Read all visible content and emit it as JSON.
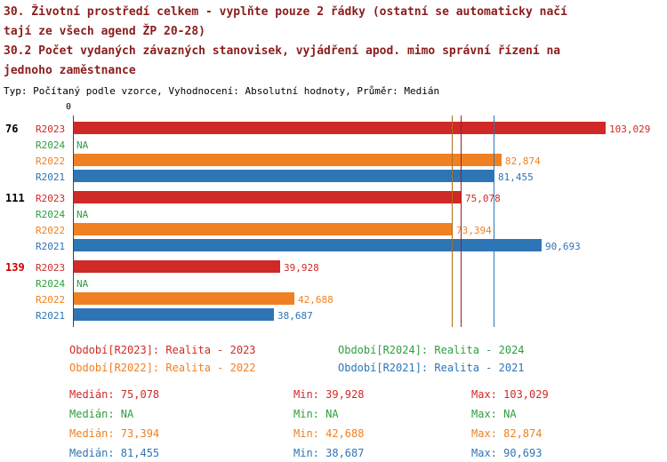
{
  "header": {
    "title_lines": [
      "30. Životní prostředí celkem - vyplňte pouze 2 řádky (ostatní se automaticky načí",
      "tají ze všech agend ŽP 20-28)",
      "30.2 Počet vydaných závazných stanovisek, vyjádření apod. mimo správní řízení na",
      "jednoho zaměstnance"
    ],
    "meta_line": "Typ: Počítaný podle vzorce, Vyhodnocení: Absolutní hodnoty, Průměr: Medián"
  },
  "colors": {
    "title": "#8b1c1c",
    "R2023": "#cf2a27",
    "R2024": "#2e9e3e",
    "R2022": "#ef8122",
    "R2021": "#2e75b6",
    "median_R2023": "#9a1f1f",
    "median_R2022": "#b06c1a",
    "median_R2021": "#2e75b6",
    "group_label_default": "#000000",
    "group_label_highlight": "#cc0000",
    "axis": "#444444"
  },
  "chart_data": {
    "type": "bar",
    "orientation": "horizontal",
    "title": "30.2 Počet vydaných závazných stanovisek, vyjádření apod. mimo správní řízení na jednoho zaměstnance",
    "x_axis": {
      "origin_label": "0",
      "max": 103.029
    },
    "series_order": [
      "R2023",
      "R2024",
      "R2022",
      "R2021"
    ],
    "groups": [
      {
        "label": "76",
        "highlight": false,
        "bars": [
          {
            "series": "R2023",
            "value": 103.029,
            "label": "103,029"
          },
          {
            "series": "R2024",
            "value": null,
            "label": "NA"
          },
          {
            "series": "R2022",
            "value": 82.874,
            "label": "82,874"
          },
          {
            "series": "R2021",
            "value": 81.455,
            "label": "81,455"
          }
        ]
      },
      {
        "label": "111",
        "highlight": false,
        "bars": [
          {
            "series": "R2023",
            "value": 75.078,
            "label": "75,078"
          },
          {
            "series": "R2024",
            "value": null,
            "label": "NA"
          },
          {
            "series": "R2022",
            "value": 73.394,
            "label": "73,394"
          },
          {
            "series": "R2021",
            "value": 90.693,
            "label": "90,693"
          }
        ]
      },
      {
        "label": "139",
        "highlight": true,
        "bars": [
          {
            "series": "R2023",
            "value": 39.928,
            "label": "39,928"
          },
          {
            "series": "R2024",
            "value": null,
            "label": "NA"
          },
          {
            "series": "R2022",
            "value": 42.688,
            "label": "42,688"
          },
          {
            "series": "R2021",
            "value": 38.687,
            "label": "38,687"
          }
        ]
      }
    ],
    "median_lines": [
      {
        "series": "R2023",
        "value": 75.078
      },
      {
        "series": "R2022",
        "value": 73.394
      },
      {
        "series": "R2021",
        "value": 81.455
      }
    ]
  },
  "legend": {
    "items": [
      {
        "series": "R2023",
        "label": "Období[R2023]: Realita - 2023"
      },
      {
        "series": "R2024",
        "label": "Období[R2024]: Realita - 2024"
      },
      {
        "series": "R2022",
        "label": "Období[R2022]: Realita - 2022"
      },
      {
        "series": "R2021",
        "label": "Období[R2021]: Realita - 2021"
      }
    ]
  },
  "stats": {
    "rows": [
      {
        "series": "R2023",
        "median": "Medián: 75,078",
        "min": "Min: 39,928",
        "max": "Max: 103,029"
      },
      {
        "series": "R2024",
        "median": "Medián: NA",
        "min": "Min: NA",
        "max": "Max: NA"
      },
      {
        "series": "R2022",
        "median": "Medián: 73,394",
        "min": "Min: 42,688",
        "max": "Max: 82,874"
      },
      {
        "series": "R2021",
        "median": "Medián: 81,455",
        "min": "Min: 38,687",
        "max": "Max: 90,693"
      }
    ]
  }
}
